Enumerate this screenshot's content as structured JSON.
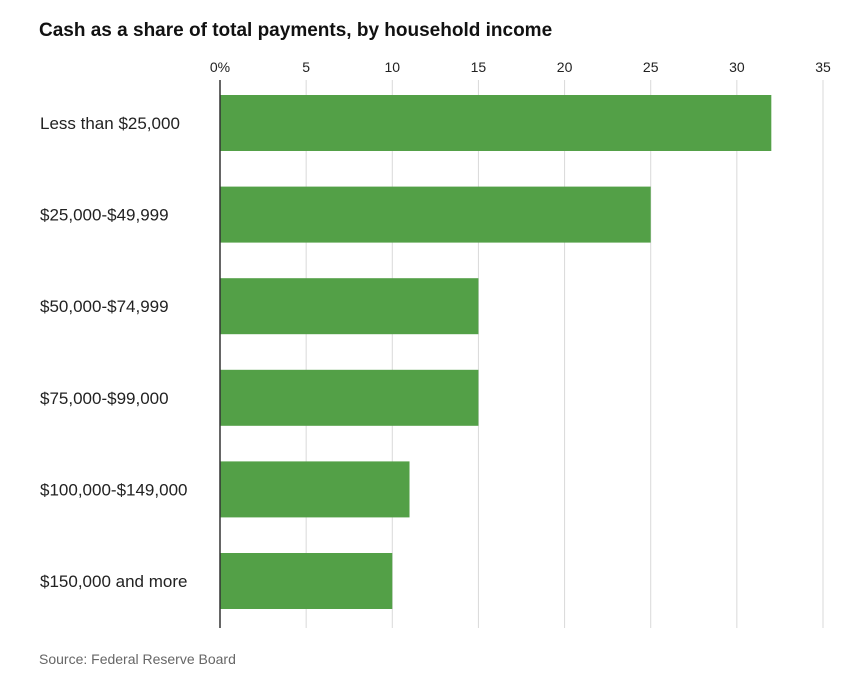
{
  "chart_data": {
    "type": "bar",
    "orientation": "horizontal",
    "title": "Cash as a share of total payments, by household income",
    "source": "Source: Federal Reserve Board",
    "categories": [
      "Less than $25,000",
      "$25,000-$49,999",
      "$50,000-$74,999",
      "$75,000-$99,000",
      "$100,000-$149,000",
      "$150,000 and more"
    ],
    "values": [
      32,
      25,
      15,
      15,
      11,
      10
    ],
    "xlim": [
      0,
      35
    ],
    "xticks": [
      0,
      5,
      10,
      15,
      20,
      25,
      30,
      35
    ],
    "xtick_labels": [
      "0%",
      "5",
      "10",
      "15",
      "20",
      "25",
      "30",
      "35"
    ],
    "grid": true,
    "bar_color": "#53a047"
  }
}
